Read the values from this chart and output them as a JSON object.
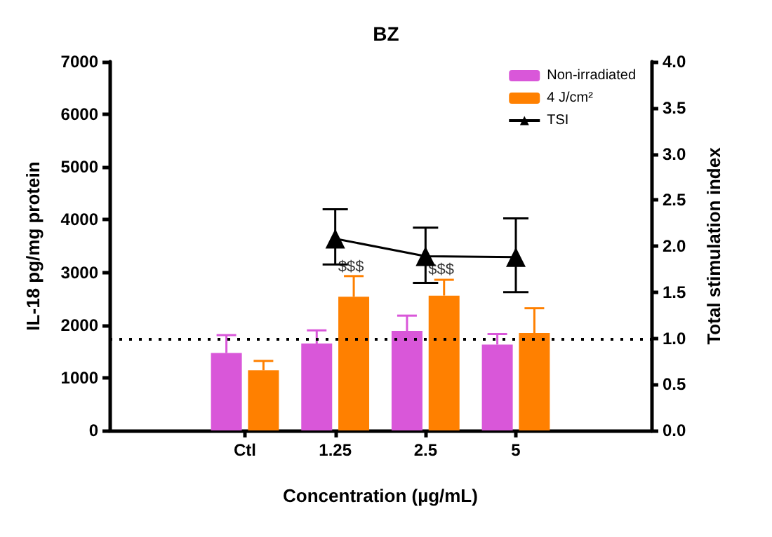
{
  "chart_data": {
    "type": "bar",
    "title": "BZ",
    "xlabel": "Concentration (µg/mL)",
    "ylabel": "IL-18 pg/mg protein",
    "y2label": "Total stimulation index",
    "categories": [
      null,
      "Ctl",
      "1.25",
      "2.5",
      "5",
      null
    ],
    "series": [
      {
        "name": "Non-irradiated",
        "color": "#d957d9",
        "values": [
          null,
          1470,
          1650,
          1890,
          1630,
          null
        ],
        "errors": [
          null,
          [
            1470,
            1810
          ],
          [
            1650,
            1900
          ],
          [
            1890,
            2180
          ],
          [
            1630,
            1830
          ],
          null
        ]
      },
      {
        "name": "4 J/cm²",
        "color": "#ff8000",
        "values": [
          null,
          1140,
          2540,
          2560,
          1850,
          null
        ],
        "errors": [
          null,
          [
            1140,
            1320
          ],
          [
            2540,
            2930
          ],
          [
            2560,
            2860
          ],
          [
            1850,
            2320
          ],
          null
        ]
      },
      {
        "name": "TSI",
        "type": "line",
        "axis": "y2",
        "color": "#000000",
        "marker": "triangle",
        "values": [
          null,
          null,
          2.08,
          1.89,
          1.88,
          null
        ],
        "errors": [
          null,
          null,
          [
            1.8,
            2.4
          ],
          [
            1.6,
            2.2
          ],
          [
            1.5,
            2.3
          ],
          null
        ]
      }
    ],
    "ylim": [
      0,
      7000
    ],
    "yticks": [
      0,
      1000,
      2000,
      3000,
      4000,
      5000,
      6000,
      7000
    ],
    "y2lim": [
      0,
      4
    ],
    "y2ticks": [
      {
        "value": 0,
        "label": "0.0"
      },
      {
        "value": 0.5,
        "label": "0.5"
      },
      {
        "value": 1,
        "label": "1.0"
      },
      {
        "value": 1.5,
        "label": "1.5"
      },
      {
        "value": 2,
        "label": "2.0"
      },
      {
        "value": 2.5,
        "label": "2.5"
      },
      {
        "value": 3,
        "label": "3.0"
      },
      {
        "value": 3.5,
        "label": "3.5"
      },
      {
        "value": 4,
        "label": "4.0"
      }
    ],
    "ref_lines": [
      {
        "axis": "y2",
        "value": 1,
        "line_style": "dotted",
        "color": "#000000"
      }
    ],
    "annotations": [
      {
        "text": "$$$",
        "x": "1.25",
        "y": 3100
      },
      {
        "text": "$$$",
        "x": "2.5",
        "y": 3050
      }
    ],
    "grid": false,
    "legend": "top right"
  }
}
